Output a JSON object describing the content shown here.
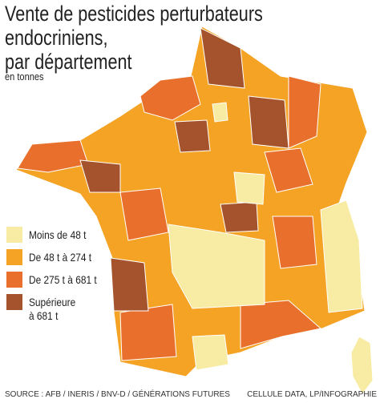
{
  "header": {
    "title_lines": [
      "Vente de pesticides perturbateurs",
      "endocriniens,",
      "par département"
    ],
    "subtitle": "en tonnes"
  },
  "legend": {
    "items": [
      {
        "label": "Moins de 48 t",
        "color": "#f8eca4"
      },
      {
        "label": "De 48 t à 274 t",
        "color": "#f4a325"
      },
      {
        "label": "De 275 t à 681 t",
        "color": "#e8702c"
      },
      {
        "label": "Supérieure à 681 t",
        "color": "#a4532c"
      }
    ]
  },
  "footer": {
    "source": "SOURCE : AFB / INERIS / BNV-D / GÉNÉRATIONS FUTURES",
    "credit": "CELLULE DATA, LP/INFOGRAPHIE"
  }
}
